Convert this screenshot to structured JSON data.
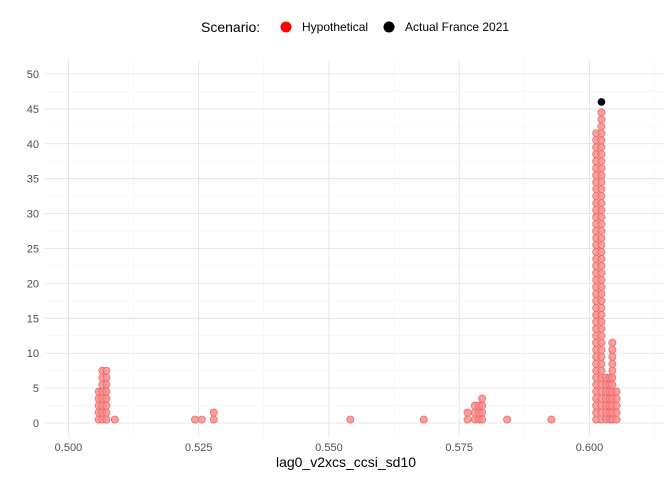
{
  "chart_data": {
    "type": "scatter",
    "title": "",
    "xlabel": "lag0_v2xcs_ccsi_sd10",
    "ylabel": "",
    "xlim": [
      0.4955,
      0.6145
    ],
    "ylim": [
      -2,
      52
    ],
    "x_ticks": [
      "0.500",
      "0.525",
      "0.550",
      "0.575",
      "0.600"
    ],
    "x_tick_values": [
      0.5,
      0.525,
      0.55,
      0.575,
      0.6
    ],
    "y_ticks": [
      "0",
      "5",
      "10",
      "15",
      "20",
      "25",
      "30",
      "35",
      "40",
      "45",
      "50"
    ],
    "y_tick_values": [
      0,
      5,
      10,
      15,
      20,
      25,
      30,
      35,
      40,
      45,
      50
    ],
    "grid": true,
    "legend": {
      "title": "Scenario:",
      "position": "top",
      "entries": [
        {
          "label": "Hypothetical",
          "color": "#ff0000"
        },
        {
          "label": "Actual France 2021",
          "color": "#000000"
        }
      ]
    },
    "colors": {
      "hypothetical_fill": "#ff8c8c",
      "hypothetical_stroke": "#e06666",
      "actual": "#000000",
      "grid_major": "#e0e0e0",
      "grid_minor": "#f2f2f2"
    },
    "dot_stacks": [
      {
        "x": 0.5058,
        "top": 5
      },
      {
        "x": 0.5065,
        "top": 7.7
      },
      {
        "x": 0.5073,
        "top": 7.7
      },
      {
        "x": 0.5089,
        "top": 0.5
      },
      {
        "x": 0.5243,
        "top": 0.5
      },
      {
        "x": 0.5256,
        "top": 0.5
      },
      {
        "x": 0.5279,
        "top": 1.5
      },
      {
        "x": 0.5541,
        "top": 0.5
      },
      {
        "x": 0.5682,
        "top": 0.5
      },
      {
        "x": 0.5766,
        "top": 1.5
      },
      {
        "x": 0.578,
        "top": 3.2
      },
      {
        "x": 0.5788,
        "top": 3.2
      },
      {
        "x": 0.5794,
        "top": 4.2
      },
      {
        "x": 0.5842,
        "top": 0.5
      },
      {
        "x": 0.5927,
        "top": 0.5
      },
      {
        "x": 0.6013,
        "top": 41.5
      },
      {
        "x": 0.6023,
        "top": 45
      },
      {
        "x": 0.6032,
        "top": 6.5
      },
      {
        "x": 0.6039,
        "top": 6.5
      },
      {
        "x": 0.6044,
        "top": 12.4
      },
      {
        "x": 0.6052,
        "top": 5
      }
    ],
    "actual_point": {
      "x": 0.6023,
      "y": 46
    }
  }
}
